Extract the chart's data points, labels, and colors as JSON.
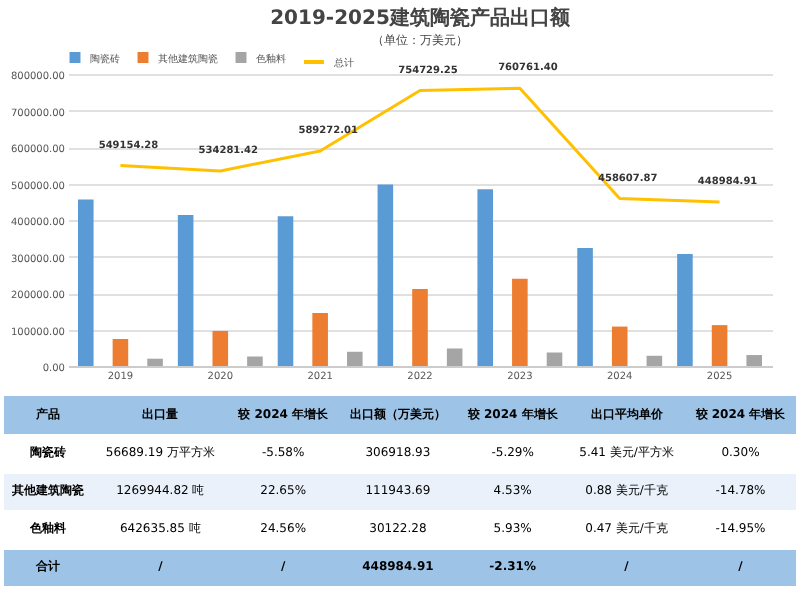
{
  "chart_data": {
    "type": "bar",
    "title": "2019-2025建筑陶瓷产品出口额",
    "subtitle": "（单位：万美元）",
    "categories": [
      "2019",
      "2020",
      "2021",
      "2022",
      "2023",
      "2024",
      "2025"
    ],
    "series": [
      {
        "name": "陶瓷砖",
        "color": "#5b9bd5",
        "values": [
          456000,
          414000,
          410000,
          497000,
          484000,
          323000,
          307000
        ]
      },
      {
        "name": "其他建筑陶瓷",
        "color": "#ed7d31",
        "values": [
          74000,
          96000,
          145000,
          211000,
          239000,
          108000,
          112000
        ]
      },
      {
        "name": "色釉料",
        "color": "#a5a5a5",
        "values": [
          20000,
          26000,
          39000,
          48000,
          37000,
          28000,
          30000
        ]
      },
      {
        "name": "总计",
        "type": "line",
        "color": "#ffc000",
        "values": [
          549154.28,
          534281.42,
          589272.01,
          754729.25,
          760761.4,
          458607.87,
          448984.91
        ],
        "value_labels": [
          "549154.28",
          "534281.42",
          "589272.01",
          "754729.25",
          "760761.40",
          "458607.87",
          "448984.91"
        ]
      }
    ],
    "ylim": [
      0,
      800000
    ],
    "yticks": [
      {
        "value": 0,
        "label": "0.00"
      },
      {
        "value": 100000,
        "label": "100000.00"
      },
      {
        "value": 200000,
        "label": "200000.00"
      },
      {
        "value": 300000,
        "label": "300000.00"
      },
      {
        "value": 400000,
        "label": "400000.00"
      },
      {
        "value": 500000,
        "label": "500000.00"
      },
      {
        "value": 600000,
        "label": "600000.00"
      },
      {
        "value": 700000,
        "label": "700000.00"
      },
      {
        "value": 800000,
        "label": "800000.00"
      }
    ],
    "grid": "y",
    "legend": "top",
    "marker": "none",
    "line_style": "solid",
    "annotations": [
      "产品",
      "出口量",
      "较 2024 年增长",
      "出口额（万美元）",
      "较 2024 年增长",
      "出口平均单价",
      "较 2024 年增长",
      "陶瓷砖",
      "56689.19 万平方米",
      "-5.58%",
      "306918.93",
      "-5.29%",
      "5.41 美元/平方米",
      "0.30%",
      "其他建筑陶瓷",
      "1269944.82 吨",
      "22.65%",
      "111943.69",
      "4.53%",
      "0.88 美元/千克",
      "-14.78%",
      "色釉料",
      "642635.85 吨",
      "24.56%",
      "30122.28",
      "5.93%",
      "0.47 美元/千克",
      "-14.95%",
      "合计",
      "/",
      "/",
      "448984.91",
      "-2.31%",
      "/",
      "/"
    ]
  }
}
